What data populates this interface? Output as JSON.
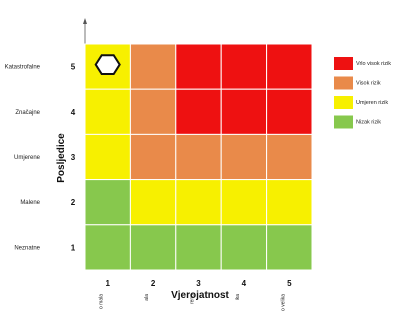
{
  "chart_data": {
    "type": "heatmap",
    "xlabel": "Vjerojatnost",
    "ylabel": "Posljedice",
    "x_values": [
      1,
      2,
      3,
      4,
      5
    ],
    "x_category_labels_partial": [
      "o mala",
      "ala",
      "rena",
      "ika",
      "o velika"
    ],
    "y_values": [
      1,
      2,
      3,
      4,
      5
    ],
    "y_category_labels": [
      "Neznatne",
      "Malene",
      "Umjerene",
      "Značajne",
      "Katastrofalne"
    ],
    "levels": [
      "Vrlo visok rizik",
      "Visok rizik",
      "Umjeren rizik",
      "Nizak rizik"
    ],
    "level_colors": [
      "#ee1111",
      "#e98a4a",
      "#f7f000",
      "#87c84d"
    ],
    "matrix": [
      [
        2,
        1,
        0,
        0,
        0
      ],
      [
        2,
        1,
        0,
        0,
        0
      ],
      [
        2,
        1,
        1,
        1,
        1
      ],
      [
        3,
        2,
        2,
        2,
        2
      ],
      [
        3,
        3,
        3,
        3,
        3
      ]
    ],
    "marker": {
      "shape": "hexagon",
      "x": 1,
      "y": 5
    },
    "legend_position": "right"
  }
}
